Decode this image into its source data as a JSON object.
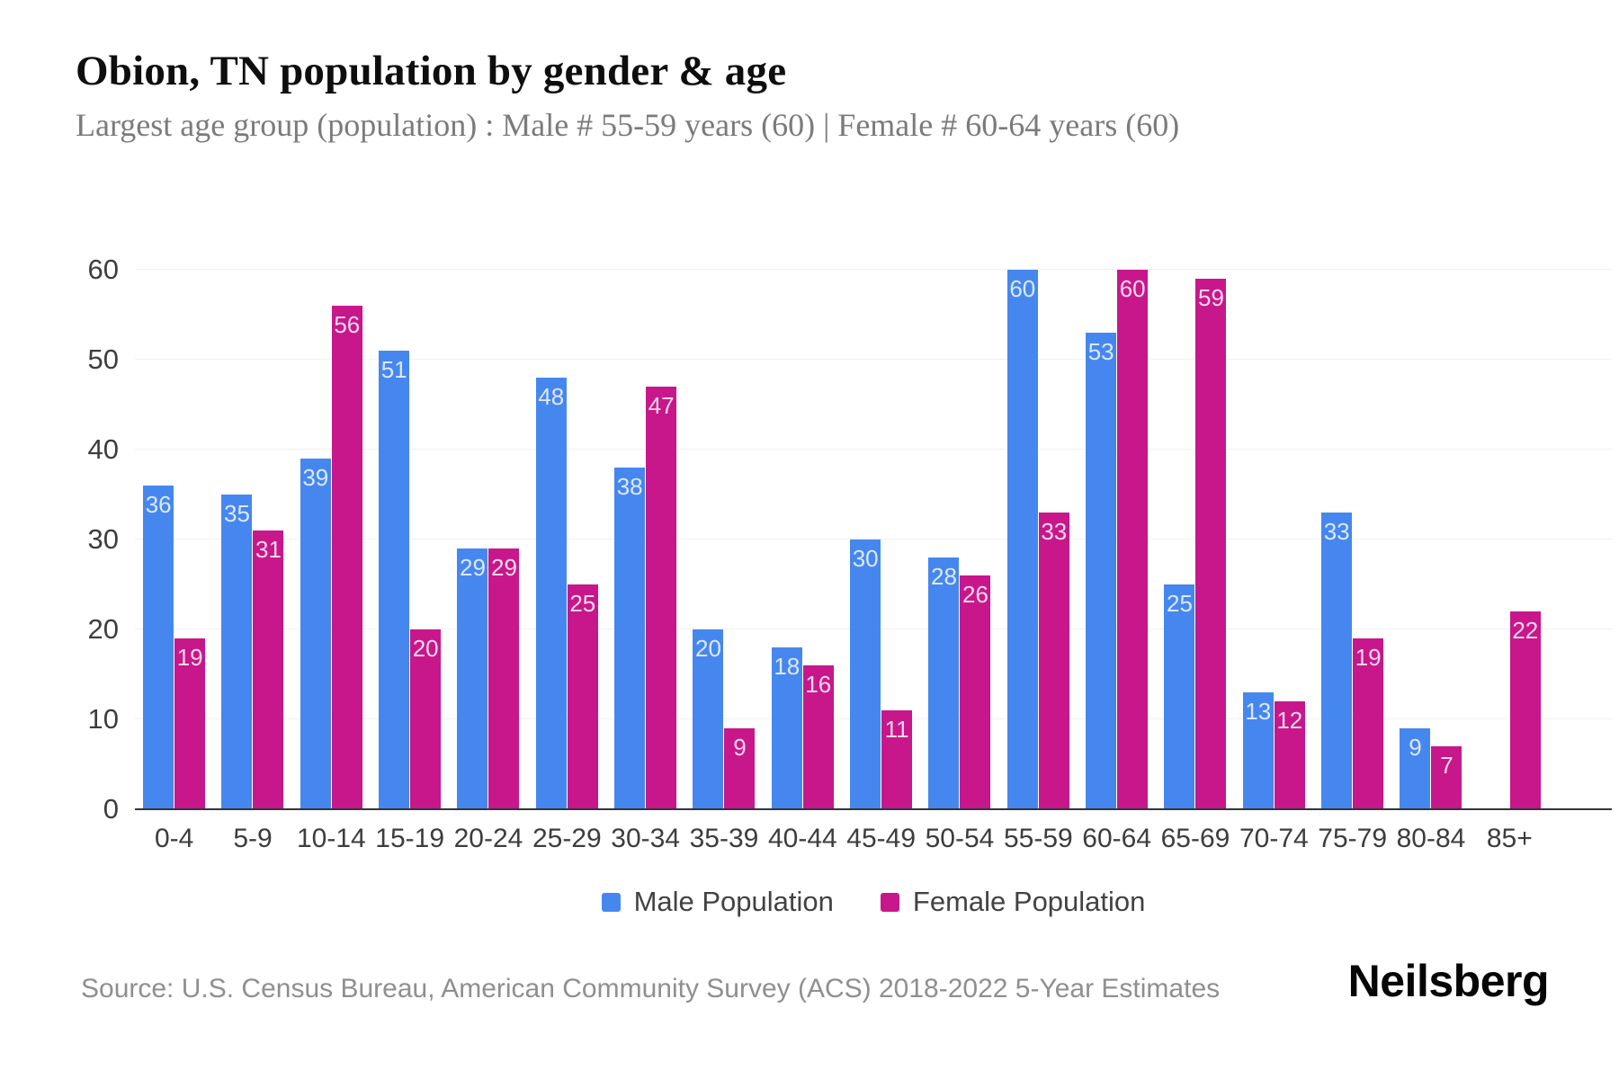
{
  "header": {
    "title": "Obion, TN population by gender & age",
    "subtitle": "Largest age group (population) : Male # 55-59 years (60) | Female # 60-64 years (60)"
  },
  "footer": {
    "source": "Source: U.S. Census Bureau, American Community Survey (ACS) 2018-2022 5-Year Estimates",
    "brand": "Neilsberg"
  },
  "colors": {
    "male": "#4687ef",
    "female": "#c7178a",
    "grid": "#f1f1f1",
    "axis_line": "#30363c",
    "tick_label": "#3d3d3d",
    "value_label_on_male": "#dce8fb",
    "value_label_on_female": "#f8d8ec",
    "title": "#0e0e0e",
    "subtitle": "#7b7b7b",
    "source": "#8f8f8f",
    "legend_text": "#424242"
  },
  "chart_data": {
    "type": "bar",
    "title": "Obion, TN population by gender & age",
    "categories": [
      "0-4",
      "5-9",
      "10-14",
      "15-19",
      "20-24",
      "25-29",
      "30-34",
      "35-39",
      "40-44",
      "45-49",
      "50-54",
      "55-59",
      "60-64",
      "65-69",
      "70-74",
      "75-79",
      "80-84",
      "85+"
    ],
    "series": [
      {
        "name": "Male Population",
        "color": "#4687ef",
        "values": [
          36,
          35,
          39,
          51,
          29,
          48,
          38,
          20,
          18,
          30,
          28,
          60,
          53,
          25,
          13,
          33,
          9,
          0
        ]
      },
      {
        "name": "Female Population",
        "color": "#c7178a",
        "values": [
          19,
          31,
          56,
          20,
          29,
          25,
          47,
          9,
          16,
          11,
          26,
          33,
          60,
          59,
          12,
          19,
          7,
          22
        ]
      }
    ],
    "xlabel": "",
    "ylabel": "",
    "ylim": [
      0,
      60
    ],
    "yticks": [
      0,
      10,
      20,
      30,
      40,
      50,
      60
    ],
    "grid": true,
    "value_labels": "inside-top",
    "legend_position": "bottom"
  }
}
